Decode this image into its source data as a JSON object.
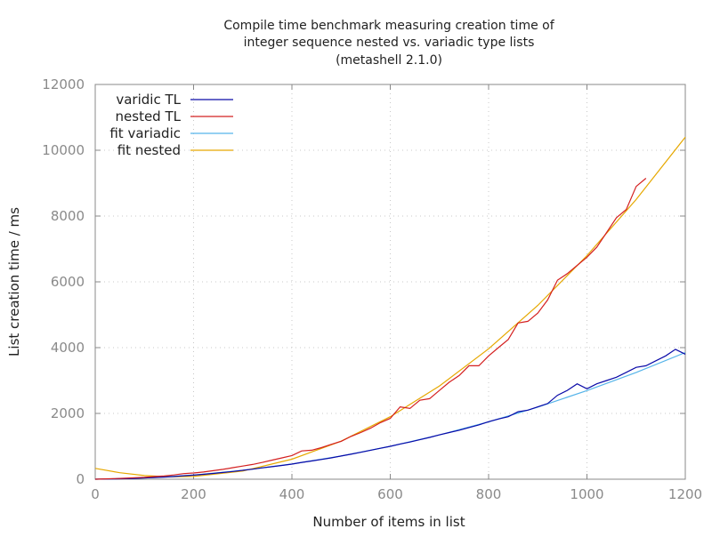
{
  "chart_data": {
    "type": "line",
    "title": [
      "Compile time benchmark measuring creation time of",
      "integer sequence nested vs. variadic type lists",
      "(metashell 2.1.0)"
    ],
    "xlabel": "Number of items in list",
    "ylabel": "List creation time / ms",
    "xlim": [
      0,
      1200
    ],
    "ylim": [
      0,
      12000
    ],
    "xticks": [
      0,
      200,
      400,
      600,
      800,
      1000,
      1200
    ],
    "yticks": [
      0,
      2000,
      4000,
      6000,
      8000,
      10000,
      12000
    ],
    "grid": true,
    "legend_placement": "top-left",
    "series": [
      {
        "name": "varidic TL",
        "color": "#0a0aa8",
        "points": [
          [
            0,
            0
          ],
          [
            20,
            5
          ],
          [
            40,
            10
          ],
          [
            60,
            15
          ],
          [
            80,
            25
          ],
          [
            100,
            40
          ],
          [
            120,
            50
          ],
          [
            140,
            65
          ],
          [
            160,
            80
          ],
          [
            180,
            105
          ],
          [
            200,
            125
          ],
          [
            220,
            150
          ],
          [
            240,
            175
          ],
          [
            260,
            205
          ],
          [
            280,
            235
          ],
          [
            300,
            270
          ],
          [
            320,
            305
          ],
          [
            340,
            345
          ],
          [
            360,
            380
          ],
          [
            380,
            420
          ],
          [
            400,
            460
          ],
          [
            420,
            510
          ],
          [
            440,
            555
          ],
          [
            460,
            600
          ],
          [
            480,
            650
          ],
          [
            500,
            705
          ],
          [
            520,
            760
          ],
          [
            540,
            820
          ],
          [
            560,
            880
          ],
          [
            580,
            940
          ],
          [
            600,
            1000
          ],
          [
            620,
            1070
          ],
          [
            640,
            1130
          ],
          [
            660,
            1200
          ],
          [
            680,
            1270
          ],
          [
            700,
            1350
          ],
          [
            720,
            1420
          ],
          [
            740,
            1490
          ],
          [
            760,
            1570
          ],
          [
            780,
            1650
          ],
          [
            800,
            1750
          ],
          [
            820,
            1830
          ],
          [
            840,
            1900
          ],
          [
            860,
            2050
          ],
          [
            880,
            2100
          ],
          [
            900,
            2200
          ],
          [
            920,
            2300
          ],
          [
            940,
            2550
          ],
          [
            960,
            2700
          ],
          [
            980,
            2900
          ],
          [
            1000,
            2750
          ],
          [
            1020,
            2900
          ],
          [
            1040,
            3000
          ],
          [
            1060,
            3100
          ],
          [
            1080,
            3250
          ],
          [
            1100,
            3400
          ],
          [
            1120,
            3450
          ],
          [
            1140,
            3600
          ],
          [
            1160,
            3750
          ],
          [
            1180,
            3950
          ],
          [
            1200,
            3800
          ]
        ]
      },
      {
        "name": "nested TL",
        "color": "#d42020",
        "points": [
          [
            0,
            0
          ],
          [
            20,
            10
          ],
          [
            40,
            20
          ],
          [
            60,
            30
          ],
          [
            80,
            45
          ],
          [
            100,
            60
          ],
          [
            120,
            80
          ],
          [
            140,
            100
          ],
          [
            160,
            130
          ],
          [
            180,
            170
          ],
          [
            200,
            190
          ],
          [
            220,
            220
          ],
          [
            240,
            260
          ],
          [
            260,
            300
          ],
          [
            280,
            350
          ],
          [
            300,
            400
          ],
          [
            320,
            450
          ],
          [
            340,
            510
          ],
          [
            360,
            580
          ],
          [
            380,
            650
          ],
          [
            400,
            720
          ],
          [
            420,
            860
          ],
          [
            440,
            880
          ],
          [
            460,
            960
          ],
          [
            480,
            1060
          ],
          [
            500,
            1150
          ],
          [
            520,
            1300
          ],
          [
            540,
            1420
          ],
          [
            560,
            1550
          ],
          [
            580,
            1720
          ],
          [
            600,
            1850
          ],
          [
            620,
            2200
          ],
          [
            640,
            2150
          ],
          [
            660,
            2400
          ],
          [
            680,
            2450
          ],
          [
            700,
            2700
          ],
          [
            720,
            2950
          ],
          [
            740,
            3150
          ],
          [
            760,
            3450
          ],
          [
            780,
            3450
          ],
          [
            800,
            3750
          ],
          [
            820,
            4000
          ],
          [
            840,
            4250
          ],
          [
            860,
            4750
          ],
          [
            880,
            4800
          ],
          [
            900,
            5050
          ],
          [
            920,
            5450
          ],
          [
            940,
            6050
          ],
          [
            960,
            6250
          ],
          [
            980,
            6500
          ],
          [
            1000,
            6750
          ],
          [
            1020,
            7050
          ],
          [
            1040,
            7500
          ],
          [
            1060,
            7950
          ],
          [
            1080,
            8200
          ],
          [
            1100,
            8900
          ],
          [
            1120,
            9150
          ]
        ]
      },
      {
        "name": "fit variadic",
        "color": "#56b4e9",
        "points": [
          [
            0,
            0
          ],
          [
            100,
            38
          ],
          [
            200,
            128
          ],
          [
            300,
            269
          ],
          [
            400,
            461
          ],
          [
            500,
            705
          ],
          [
            600,
            1000
          ],
          [
            700,
            1346
          ],
          [
            800,
            1744
          ],
          [
            900,
            2193
          ],
          [
            1000,
            2694
          ],
          [
            1100,
            3246
          ],
          [
            1200,
            3850
          ]
        ]
      },
      {
        "name": "fit nested",
        "color": "#e6a800",
        "points": [
          [
            0,
            330
          ],
          [
            50,
            196
          ],
          [
            100,
            110
          ],
          [
            150,
            72
          ],
          [
            200,
            83
          ],
          [
            300,
            249
          ],
          [
            400,
            607
          ],
          [
            500,
            1157
          ],
          [
            600,
            1900
          ],
          [
            700,
            2835
          ],
          [
            800,
            3964
          ],
          [
            900,
            5284
          ],
          [
            1000,
            6797
          ],
          [
            1100,
            8503
          ],
          [
            1200,
            10400
          ]
        ]
      }
    ]
  }
}
